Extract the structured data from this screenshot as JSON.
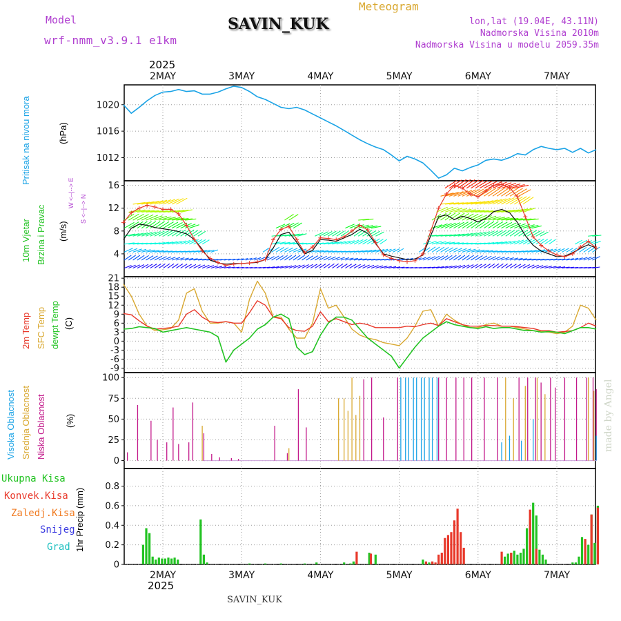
{
  "header": {
    "model_label": "Model",
    "model_name": "wrf-nmm_v3.9.1 e1km",
    "station": "SAVIN_KUK",
    "meteogram": "Meteogram",
    "lonlat": "lon,lat (19.04E, 43.11N)",
    "altitude": "Nadmorska Visina 2010m",
    "model_altitude": "Nadmorska Visina u modelu 2059.35m",
    "year_top": "2025",
    "year_bottom": "2025",
    "footer_station": "SAVIN_KUK",
    "watermark": "made by Angel"
  },
  "colors": {
    "pressure": "#1aa3e6",
    "wind_label": "#22c322",
    "temp2m": "#e8382a",
    "sfc": "#d9a830",
    "dewpt": "#22c322",
    "high_cloud": "#1aa3e6",
    "mid_cloud": "#d9a830",
    "low_cloud": "#c2188a",
    "rain_total": "#22c322",
    "rain_conv": "#e8382a",
    "freezing": "#f07a20",
    "snow": "#3a3ae0",
    "hail": "#20c0c0",
    "axis_label": "#111111",
    "wind_dir_label": "#b040d0"
  },
  "days": [
    "2MAY",
    "3MAY",
    "4MAY",
    "5MAY",
    "6MAY",
    "7MAY"
  ],
  "panels": {
    "pressure": {
      "label": "Pritisak na nivou mora",
      "unit": "(hPa)",
      "ticks": [
        "1012",
        "1016",
        "1020"
      ]
    },
    "wind": {
      "label1": "10m Vjetar",
      "label2": "Brzina i Pravac",
      "unit": "(m/s)",
      "dir_label": "W <--|--> E",
      "dir_label2": "S <--|--> N",
      "ticks": [
        "4",
        "8",
        "12",
        "16"
      ]
    },
    "temp": {
      "label1": "2m Temp",
      "label2": "SFC Temp",
      "label3": "dewpt Temp",
      "unit": "(C)",
      "ticks": [
        "-9",
        "-6",
        "-3",
        "0",
        "3",
        "6",
        "9",
        "12",
        "15",
        "18",
        "21"
      ]
    },
    "cloud": {
      "label1": "Visoka Oblacnost",
      "label2": "Srednja Oblacnost",
      "label3": "Niska Oblacnost",
      "unit": "(%)",
      "ticks": [
        "0",
        "25",
        "50",
        "75",
        "100"
      ]
    },
    "precip": {
      "legend": [
        "Ukupna Kisa",
        "Konvek.Kisa",
        "Zaledj.Kisa",
        "Snijeg",
        "Grad"
      ],
      "unit": "1hr Precip (mm)",
      "ticks": [
        "0",
        "0.2",
        "0.4",
        "0.6",
        "0.8"
      ]
    }
  },
  "chart_data": [
    {
      "type": "line",
      "title": "Pritisak na nivou mora",
      "ylabel": "(hPa)",
      "x_unit": "days from 2MAY 00h",
      "ylim": [
        1008.5,
        1023
      ],
      "x": [
        -0.5,
        -0.4,
        -0.3,
        -0.2,
        -0.1,
        0,
        0.1,
        0.2,
        0.3,
        0.4,
        0.5,
        0.6,
        0.7,
        0.8,
        0.9,
        1,
        1.1,
        1.2,
        1.3,
        1.4,
        1.5,
        1.6,
        1.7,
        1.8,
        1.9,
        2,
        2.1,
        2.2,
        2.3,
        2.4,
        2.5,
        2.6,
        2.7,
        2.8,
        2.9,
        3,
        3.1,
        3.2,
        3.3,
        3.4,
        3.5,
        3.6,
        3.7,
        3.8,
        3.9,
        4,
        4.1,
        4.2,
        4.3,
        4.4,
        4.5,
        4.6,
        4.7,
        4.8,
        4.9,
        5,
        5.1,
        5.2,
        5.3,
        5.4,
        5.5
      ],
      "series": [
        {
          "values": [
            1020.0,
            1018.7,
            1019.6,
            1020.6,
            1021.4,
            1021.9,
            1022.0,
            1022.3,
            1022.0,
            1022.1,
            1021.6,
            1021.6,
            1021.9,
            1022.4,
            1022.8,
            1022.6,
            1022.0,
            1021.2,
            1020.8,
            1020.2,
            1019.6,
            1019.4,
            1019.6,
            1019.2,
            1018.6,
            1018.0,
            1017.4,
            1016.8,
            1016.1,
            1015.4,
            1014.7,
            1014.1,
            1013.6,
            1013.2,
            1012.4,
            1011.5,
            1012.2,
            1011.8,
            1011.2,
            1010.1,
            1008.9,
            1009.4,
            1010.4,
            1010.0,
            1010.5,
            1010.9,
            1011.6,
            1011.8,
            1011.6,
            1012.0,
            1012.6,
            1012.4,
            1013.2,
            1013.7,
            1013.4,
            1013.2,
            1013.4,
            1012.8,
            1013.4,
            1012.7,
            1013.2
          ]
        }
      ]
    },
    {
      "type": "line",
      "title": "10m Vjetar Brzina i Pravac",
      "ylabel": "(m/s)",
      "x_unit": "days from 2MAY 00h",
      "ylim": [
        0,
        16.8
      ],
      "x": [
        -0.5,
        -0.4,
        -0.3,
        -0.2,
        -0.1,
        0,
        0.1,
        0.2,
        0.3,
        0.4,
        0.5,
        0.6,
        0.7,
        0.8,
        0.9,
        1,
        1.1,
        1.2,
        1.3,
        1.4,
        1.5,
        1.6,
        1.7,
        1.8,
        1.9,
        2,
        2.1,
        2.2,
        2.3,
        2.4,
        2.5,
        2.6,
        2.7,
        2.8,
        2.9,
        3,
        3.1,
        3.2,
        3.3,
        3.4,
        3.5,
        3.6,
        3.7,
        3.8,
        3.9,
        4,
        4.1,
        4.2,
        4.3,
        4.4,
        4.5,
        4.6,
        4.7,
        4.8,
        4.9,
        5,
        5.1,
        5.2,
        5.3,
        5.4,
        5.5
      ],
      "series": [
        {
          "values": [
            6.5,
            8.5,
            9.2,
            9.0,
            8.6,
            8.4,
            8.2,
            7.9,
            7.5,
            6.5,
            4.8,
            2.9,
            2.4,
            2.2,
            2.3,
            2.3,
            2.4,
            2.5,
            3.0,
            5.0,
            7.4,
            7.8,
            6.0,
            4.0,
            4.6,
            6.5,
            6.4,
            6.2,
            6.8,
            7.4,
            8.3,
            7.6,
            5.8,
            4.0,
            3.6,
            3.3,
            3.0,
            3.1,
            3.8,
            7.2,
            10.5,
            10.8,
            10.0,
            10.6,
            10.2,
            9.6,
            10.2,
            11.4,
            11.8,
            11.2,
            9.5,
            7.2,
            5.5,
            4.5,
            4.0,
            3.5,
            3.6,
            4.2,
            5.0,
            5.6,
            5.0
          ]
        },
        {
          "values": [
            9.5,
            11.2,
            12.0,
            12.5,
            12.2,
            11.8,
            11.8,
            11.0,
            9.0,
            6.5,
            4.5,
            3.2,
            2.5,
            2.0,
            2.2,
            2.3,
            2.4,
            2.6,
            3.0,
            6.5,
            8.3,
            8.8,
            6.5,
            4.2,
            5.2,
            6.8,
            6.7,
            6.5,
            7.0,
            8.0,
            9.0,
            8.2,
            6.0,
            3.8,
            3.2,
            2.8,
            2.6,
            2.8,
            4.0,
            8.0,
            12.0,
            14.5,
            16.0,
            15.5,
            14.5,
            14.0,
            15.0,
            16.0,
            16.2,
            15.6,
            14.0,
            10.5,
            7.0,
            5.5,
            4.5,
            3.8,
            3.5,
            4.0,
            5.2,
            6.2,
            5.0
          ]
        }
      ]
    },
    {
      "type": "line",
      "title": "2m Temp / SFC Temp / dewpt Temp",
      "ylabel": "(C)",
      "x_unit": "days from 2MAY 00h",
      "ylim": [
        -10.5,
        21.5
      ],
      "x": [
        -0.5,
        -0.4,
        -0.3,
        -0.2,
        -0.1,
        0,
        0.1,
        0.2,
        0.3,
        0.4,
        0.5,
        0.6,
        0.7,
        0.8,
        0.9,
        1,
        1.1,
        1.2,
        1.3,
        1.4,
        1.5,
        1.6,
        1.7,
        1.8,
        1.9,
        2,
        2.1,
        2.2,
        2.3,
        2.4,
        2.5,
        2.6,
        2.7,
        2.8,
        2.9,
        3,
        3.1,
        3.2,
        3.3,
        3.4,
        3.5,
        3.6,
        3.7,
        3.8,
        3.9,
        4,
        4.1,
        4.2,
        4.3,
        4.4,
        4.5,
        4.6,
        4.7,
        4.8,
        4.9,
        5,
        5.1,
        5.2,
        5.3,
        5.4,
        5.5
      ],
      "series": [
        {
          "name": "2m Temp",
          "values": [
            9.2,
            8.8,
            6.8,
            5.0,
            4.0,
            4.2,
            4.5,
            5.0,
            9.0,
            10.5,
            8.0,
            6.5,
            6.2,
            6.5,
            6.0,
            6.0,
            9.5,
            13.5,
            12.0,
            8.0,
            7.5,
            4.5,
            3.5,
            3.3,
            5.0,
            9.8,
            6.5,
            7.5,
            6.5,
            5.5,
            6.0,
            5.5,
            4.5,
            4.5,
            4.5,
            4.5,
            5.0,
            4.8,
            5.5,
            6.0,
            5.2,
            7.5,
            6.5,
            5.5,
            5.0,
            5.0,
            5.2,
            5.2,
            5.0,
            5.0,
            4.8,
            4.5,
            4.2,
            3.5,
            3.5,
            3.0,
            3.2,
            3.5,
            4.5,
            6.0,
            5.0
          ]
        },
        {
          "name": "SFC Temp",
          "values": [
            19.0,
            15.0,
            9.0,
            5.0,
            3.5,
            3.8,
            4.2,
            7.0,
            16.0,
            17.5,
            10.0,
            6.0,
            6.0,
            6.5,
            6.0,
            3.0,
            14.0,
            20.0,
            16.0,
            8.0,
            8.0,
            4.0,
            1.0,
            1.0,
            6.0,
            17.5,
            11.0,
            12.0,
            8.0,
            4.0,
            2.0,
            1.0,
            0.5,
            -0.5,
            -1.0,
            -1.5,
            1.0,
            5.0,
            10.0,
            10.5,
            5.0,
            9.0,
            7.0,
            5.5,
            4.5,
            4.5,
            5.5,
            6.0,
            5.0,
            5.0,
            4.5,
            4.0,
            3.5,
            3.2,
            3.0,
            2.5,
            3.0,
            5.0,
            12.0,
            11.0,
            7.0
          ]
        },
        {
          "name": "dewpt Temp",
          "values": [
            4.0,
            4.2,
            4.8,
            4.5,
            4.2,
            3.0,
            3.5,
            4.0,
            4.5,
            4.0,
            3.5,
            3.0,
            1.5,
            -7.0,
            -3.0,
            -1.0,
            1.0,
            4.0,
            5.5,
            8.0,
            9.0,
            7.5,
            -2.0,
            -4.5,
            -3.5,
            2.0,
            6.0,
            8.0,
            8.0,
            7.0,
            4.0,
            1.0,
            -1.0,
            -3.0,
            -5.0,
            -9.0,
            -5.5,
            -2.0,
            1.0,
            3.0,
            5.0,
            6.5,
            5.5,
            5.0,
            4.5,
            4.2,
            4.8,
            4.2,
            4.5,
            4.5,
            4.0,
            3.5,
            3.5,
            3.0,
            3.2,
            3.0,
            2.5,
            3.5,
            4.5,
            4.5,
            4.0
          ]
        }
      ]
    },
    {
      "type": "bar",
      "title": "Visoka / Srednja / Niska Oblacnost",
      "ylabel": "(%)",
      "x_unit": "days from 2MAY 00h",
      "ylim": [
        0,
        100
      ],
      "series": [
        {
          "name": "Niska Oblacnost",
          "x": [
            -0.45,
            -0.32,
            -0.15,
            -0.07,
            0.05,
            0.13,
            0.2,
            0.33,
            0.38,
            0.52,
            0.62,
            0.72,
            0.87,
            0.96,
            1.42,
            1.58,
            1.72,
            1.82,
            2.55,
            2.65,
            2.8,
            2.98,
            3.5,
            3.6,
            3.72,
            3.82,
            3.92,
            4.08,
            4.25,
            4.52,
            4.63,
            4.73,
            4.8,
            4.92,
            4.98,
            5.1,
            5.25,
            5.38,
            5.46,
            5.5
          ],
          "values": [
            10,
            67,
            48,
            25,
            22,
            64,
            20,
            22,
            70,
            33,
            8,
            4,
            3,
            2,
            42,
            9,
            86,
            40,
            98,
            100,
            52,
            100,
            100,
            100,
            100,
            100,
            100,
            100,
            100,
            100,
            100,
            100,
            94,
            100,
            88,
            100,
            100,
            100,
            100,
            86
          ]
        },
        {
          "name": "Srednja Oblacnost",
          "x": [
            0.5,
            1.6,
            2.23,
            2.3,
            2.35,
            2.4,
            2.45,
            2.5,
            4.35,
            4.45,
            4.6,
            4.75,
            4.85,
            5.4,
            5.47
          ],
          "values": [
            42,
            15,
            75,
            75,
            60,
            100,
            55,
            78,
            100,
            75,
            90,
            100,
            80,
            100,
            84
          ]
        },
        {
          "name": "Visoka Oblacnost",
          "x": [
            3.02,
            3.08,
            3.12,
            3.18,
            3.22,
            3.28,
            3.32,
            3.38,
            3.42,
            3.48,
            4.3,
            4.4,
            4.55,
            4.7,
            5.5
          ],
          "values": [
            100,
            100,
            100,
            100,
            100,
            100,
            100,
            100,
            100,
            100,
            22,
            30,
            24,
            50,
            30
          ]
        }
      ]
    },
    {
      "type": "bar",
      "title": "1hr Precip",
      "ylabel": "1hr Precip (mm)",
      "x_unit": "days from 2MAY 00h",
      "ylim": [
        0,
        0.98
      ],
      "series": [
        {
          "name": "Ukupna Kisa",
          "x": [
            -0.25,
            -0.21,
            -0.17,
            -0.13,
            -0.09,
            -0.05,
            -0.01,
            0.03,
            0.07,
            0.11,
            0.15,
            0.19,
            0.48,
            0.52,
            0.56,
            1.1,
            1.3,
            1.5,
            1.8,
            1.95,
            2.3,
            2.38,
            2.42,
            2.46,
            2.62,
            2.7,
            3.3,
            3.34,
            3.38,
            3.42,
            3.46,
            3.5,
            3.54,
            3.58,
            3.62,
            3.66,
            3.7,
            3.74,
            3.78,
            3.82,
            4.3,
            4.34,
            4.38,
            4.42,
            4.46,
            4.5,
            4.54,
            4.58,
            4.62,
            4.66,
            4.7,
            4.74,
            4.78,
            4.82,
            4.86,
            5.2,
            5.24,
            5.28,
            5.32,
            5.36,
            5.4,
            5.44,
            5.48,
            5.52
          ],
          "values": [
            0.2,
            0.37,
            0.32,
            0.08,
            0.05,
            0.07,
            0.06,
            0.06,
            0.07,
            0.06,
            0.07,
            0.05,
            0.46,
            0.1,
            0.02,
            0.01,
            0.01,
            0.01,
            0.01,
            0.02,
            0.02,
            0.01,
            0.03,
            0.02,
            0.12,
            0.1,
            0.05,
            0.01,
            0.02,
            0.02,
            0.01,
            0.01,
            0.02,
            0.01,
            0.01,
            0.01,
            0.02,
            0.01,
            0.02,
            0.01,
            0.01,
            0.08,
            0.11,
            0.12,
            0.14,
            0.1,
            0.12,
            0.16,
            0.37,
            0.46,
            0.63,
            0.5,
            0.15,
            0.1,
            0.05,
            0.02,
            0.02,
            0.08,
            0.28,
            0.25,
            0.2,
            0.51,
            0.22,
            0.6
          ]
        },
        {
          "name": "Konvek.Kisa",
          "x": [
            2.46,
            2.64,
            3.34,
            3.42,
            3.46,
            3.5,
            3.54,
            3.58,
            3.62,
            3.66,
            3.7,
            3.74,
            3.78,
            3.82,
            4.3,
            4.42,
            4.66,
            4.74,
            5.36,
            5.44,
            5.52
          ],
          "values": [
            0.13,
            0.11,
            0.03,
            0.03,
            0.02,
            0.1,
            0.12,
            0.27,
            0.3,
            0.33,
            0.45,
            0.57,
            0.33,
            0.17,
            0.13,
            0.12,
            0.56,
            0.16,
            0.26,
            0.51,
            0.58
          ]
        }
      ]
    }
  ]
}
